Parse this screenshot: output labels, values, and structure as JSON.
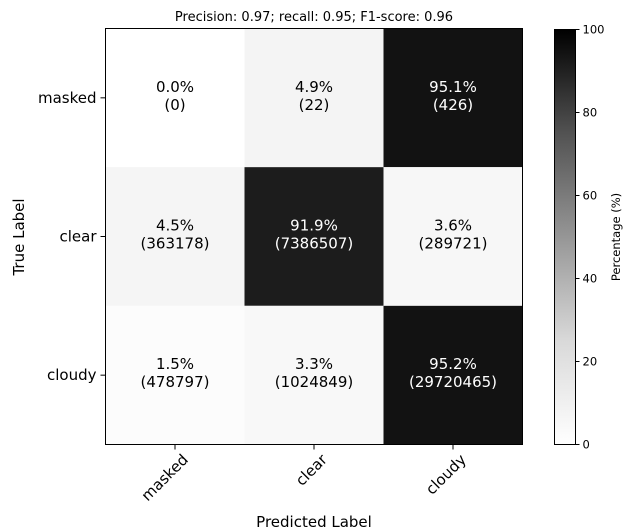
{
  "chart_data": {
    "type": "heatmap",
    "title": "Precision: 0.97; recall: 0.95; F1-score: 0.96",
    "xlabel": "Predicted Label",
    "ylabel": "True Label",
    "x_categories": [
      "masked",
      "clear",
      "cloudy"
    ],
    "y_categories": [
      "masked",
      "clear",
      "cloudy"
    ],
    "percent_values": [
      [
        0.0,
        4.9,
        95.1
      ],
      [
        4.5,
        91.9,
        3.6
      ],
      [
        1.5,
        3.3,
        95.2
      ]
    ],
    "cell_labels": [
      [
        "0.0%",
        "4.9%",
        "95.1%"
      ],
      [
        "4.5%",
        "91.9%",
        "3.6%"
      ],
      [
        "1.5%",
        "3.3%",
        "95.2%"
      ]
    ],
    "cell_counts": [
      [
        "(0)",
        "(22)",
        "(426)"
      ],
      [
        "(363178)",
        "(7386507)",
        "(289721)"
      ],
      [
        "(478797)",
        "(1024849)",
        "(29720465)"
      ]
    ],
    "colormap": "Greys",
    "colorbar": {
      "label": "Percentage (%)",
      "range": [
        0,
        100
      ],
      "ticks": [
        0,
        20,
        40,
        60,
        80,
        100
      ]
    },
    "colors": {
      "low": "#ffffff",
      "high": "#000000",
      "text_dark": "#000000",
      "text_light": "#ffffff"
    }
  }
}
